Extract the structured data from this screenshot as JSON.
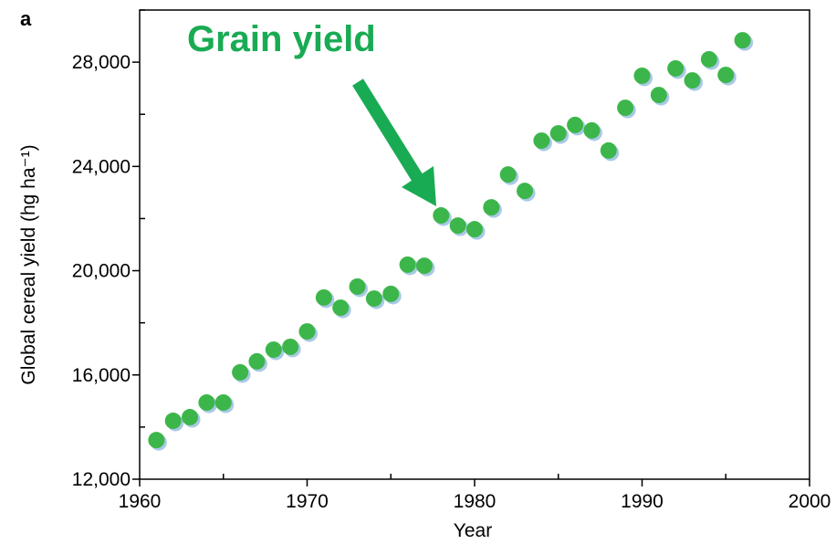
{
  "chart_data": {
    "type": "scatter",
    "panel_label": "a",
    "annotations": [
      {
        "text": "Grain yield"
      }
    ],
    "xlabel": "Year",
    "ylabel": "Global cereal yield (hg ha⁻¹)",
    "color": "#3cb64a",
    "shadow_color": "#a9c9e6",
    "x": [
      1961,
      1962,
      1963,
      1964,
      1965,
      1966,
      1967,
      1968,
      1969,
      1970,
      1971,
      1972,
      1973,
      1974,
      1975,
      1976,
      1977,
      1978,
      1979,
      1980,
      1981,
      1982,
      1983,
      1984,
      1985,
      1986,
      1987,
      1988,
      1989,
      1990,
      1991,
      1992,
      1993,
      1994,
      1995,
      1996
    ],
    "values": [
      13500,
      14240,
      14380,
      14940,
      14940,
      16100,
      16520,
      16970,
      17080,
      17670,
      18970,
      18580,
      19390,
      18930,
      19110,
      20230,
      20190,
      22120,
      21730,
      21590,
      22430,
      23690,
      23060,
      24990,
      25270,
      25590,
      25380,
      24610,
      26250,
      27480,
      26740,
      27760,
      27300,
      28110,
      27510,
      28840
    ],
    "xlim": [
      1960,
      2000
    ],
    "ylim": [
      12000,
      30000
    ],
    "xticks": [
      1960,
      1970,
      1980,
      1990,
      2000
    ],
    "xminorticks": [
      1965,
      1975,
      1985,
      1995
    ],
    "yticks": [
      {
        "value": 12000,
        "label": "12,000"
      },
      {
        "value": 16000,
        "label": "16,000"
      },
      {
        "value": 20000,
        "label": "20,000"
      },
      {
        "value": 24000,
        "label": "24,000"
      },
      {
        "value": 28000,
        "label": "28,000"
      }
    ],
    "yminorticks": [
      14000,
      18000,
      22000,
      26000,
      30000
    ]
  }
}
